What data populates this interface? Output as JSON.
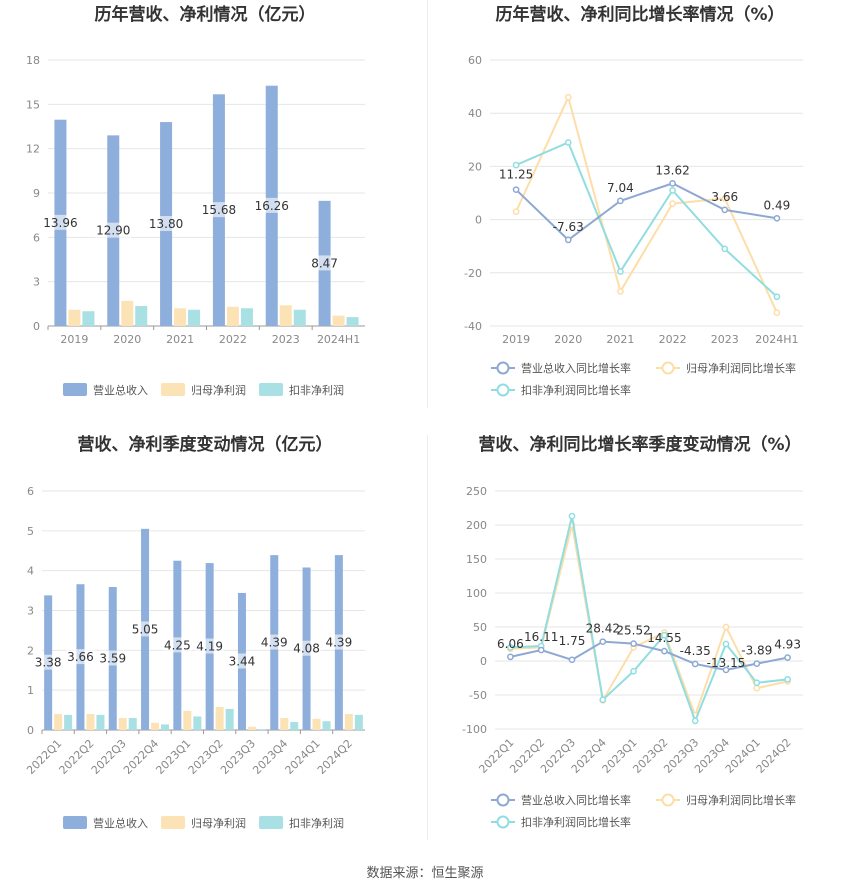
{
  "footer": "数据来源：恒生聚源",
  "colors": {
    "revenue": "#8eaedb",
    "parent_profit": "#fce3b5",
    "deducted_profit": "#a8e0e3",
    "revenue_line": "#8ea8d4",
    "parent_line": "#fddea8",
    "deducted_line": "#91dde0",
    "grid": "#e6e6e6",
    "axis_text": "#888888"
  },
  "chart_data": [
    {
      "id": "annual_amount",
      "type": "bar",
      "title": "历年营收、净利情况（亿元）",
      "categories": [
        "2019",
        "2020",
        "2021",
        "2022",
        "2023",
        "2024H1"
      ],
      "ylim": [
        0,
        18
      ],
      "yticks": [
        0,
        3,
        6,
        9,
        12,
        15,
        18
      ],
      "series": [
        {
          "name": "营业总收入",
          "values": [
            13.96,
            12.9,
            13.8,
            15.68,
            16.26,
            8.47
          ],
          "labels": [
            "13.96",
            "12.90",
            "13.80",
            "15.68",
            "16.26",
            "8.47"
          ]
        },
        {
          "name": "归母净利润",
          "values": [
            1.1,
            1.7,
            1.2,
            1.3,
            1.4,
            0.7
          ]
        },
        {
          "name": "扣非净利润",
          "values": [
            1.0,
            1.35,
            1.1,
            1.2,
            1.1,
            0.6
          ]
        }
      ],
      "legend": "bottom"
    },
    {
      "id": "annual_growth",
      "type": "line",
      "title": "历年营收、净利同比增长率情况（%）",
      "categories": [
        "2019",
        "2020",
        "2021",
        "2022",
        "2023",
        "2024H1"
      ],
      "ylim": [
        -40,
        60
      ],
      "yticks": [
        -40,
        -20,
        0,
        20,
        40,
        60
      ],
      "series": [
        {
          "name": "营业总收入同比增长率",
          "values": [
            11.25,
            -7.63,
            7.04,
            13.62,
            3.66,
            0.49
          ],
          "labels": [
            "11.25",
            "-7.63",
            "7.04",
            "13.62",
            "3.66",
            "0.49"
          ]
        },
        {
          "name": "归母净利润同比增长率",
          "values": [
            3,
            46,
            -27,
            6,
            8,
            -35
          ]
        },
        {
          "name": "扣非净利润同比增长率",
          "values": [
            20.5,
            29,
            -19.5,
            11,
            -11,
            -29
          ]
        }
      ],
      "legend": "bottom"
    },
    {
      "id": "quarterly_amount",
      "type": "bar",
      "title": "营收、净利季度变动情况（亿元）",
      "categories": [
        "2022Q1",
        "2022Q2",
        "2022Q3",
        "2022Q4",
        "2023Q1",
        "2023Q2",
        "2023Q3",
        "2023Q4",
        "2024Q1",
        "2024Q2"
      ],
      "ylim": [
        0,
        6
      ],
      "yticks": [
        0,
        1,
        2,
        3,
        4,
        5,
        6
      ],
      "series": [
        {
          "name": "营业总收入",
          "values": [
            3.38,
            3.66,
            3.59,
            5.05,
            4.25,
            4.19,
            3.44,
            4.39,
            4.08,
            4.39
          ],
          "labels": [
            "3.38",
            "3.66",
            "3.59",
            "5.05",
            "4.25",
            "4.19",
            "3.44",
            "4.39",
            "4.08",
            "4.39"
          ]
        },
        {
          "name": "归母净利润",
          "values": [
            0.4,
            0.4,
            0.3,
            0.18,
            0.48,
            0.58,
            0.08,
            0.3,
            0.28,
            0.4
          ]
        },
        {
          "name": "扣非净利润",
          "values": [
            0.38,
            0.38,
            0.3,
            0.14,
            0.34,
            0.53,
            0.02,
            0.2,
            0.22,
            0.38
          ]
        }
      ],
      "legend": "bottom"
    },
    {
      "id": "quarterly_growth",
      "type": "line",
      "title": "营收、净利同比增长率季度变动情况（%）",
      "categories": [
        "2022Q1",
        "2022Q2",
        "2022Q3",
        "2022Q4",
        "2023Q1",
        "2023Q2",
        "2023Q3",
        "2023Q4",
        "2024Q1",
        "2024Q2"
      ],
      "ylim": [
        -100,
        250
      ],
      "yticks": [
        -100,
        -50,
        0,
        50,
        100,
        150,
        200,
        250
      ],
      "series": [
        {
          "name": "营业总收入同比增长率",
          "values": [
            6.06,
            16.11,
            1.75,
            28.42,
            25.52,
            14.55,
            -4.35,
            -13.15,
            -3.89,
            4.93
          ],
          "labels": [
            "6.06",
            "16.11",
            "1.75",
            "28.42",
            "25.52",
            "14.55",
            "-4.35",
            "-13.15",
            "-3.89",
            "4.93"
          ]
        },
        {
          "name": "归母净利润同比增长率",
          "values": [
            18,
            20,
            200,
            -58,
            20,
            42,
            -80,
            50,
            -40,
            -30
          ]
        },
        {
          "name": "扣非净利润同比增长率",
          "values": [
            20,
            22,
            213,
            -57,
            -15,
            38,
            -88,
            25,
            -32,
            -27
          ]
        }
      ],
      "legend": "bottom"
    }
  ]
}
